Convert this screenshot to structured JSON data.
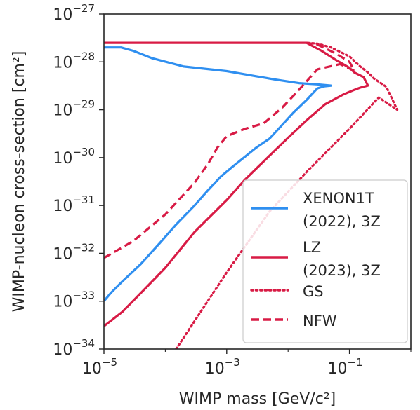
{
  "chart_data": {
    "type": "line",
    "xlabel": "WIMP mass [GeV/c²]",
    "ylabel": "WIMP-nucleon cross-section [cm²]",
    "xscale": "log",
    "yscale": "log",
    "xlim": [
      1e-05,
      1.0
    ],
    "ylim": [
      1e-34,
      1e-27
    ],
    "x_ticks": [
      {
        "value": 1e-05,
        "base": "10",
        "exp": "−5"
      },
      {
        "value": 0.001,
        "base": "10",
        "exp": "−3"
      },
      {
        "value": 0.1,
        "base": "10",
        "exp": "−1"
      }
    ],
    "y_ticks": [
      {
        "value": 1e-27,
        "base": "10",
        "exp": "−27"
      },
      {
        "value": 1e-28,
        "base": "10",
        "exp": "−28"
      },
      {
        "value": 1e-29,
        "base": "10",
        "exp": "−29"
      },
      {
        "value": 1e-30,
        "base": "10",
        "exp": "−30"
      },
      {
        "value": 1e-31,
        "base": "10",
        "exp": "−31"
      },
      {
        "value": 1e-32,
        "base": "10",
        "exp": "−32"
      },
      {
        "value": 1e-33,
        "base": "10",
        "exp": "−33"
      },
      {
        "value": 1e-34,
        "base": "10",
        "exp": "−34"
      }
    ],
    "grid": false,
    "legend_position": "bottom-right",
    "legend": [
      {
        "label_lines": [
          "XENON1T",
          "(2022), 3Z"
        ],
        "color": "#2f8ff0",
        "style": "solid"
      },
      {
        "label_lines": [
          "LZ",
          "(2023), 3Z"
        ],
        "color": "#d81b45",
        "style": "solid"
      },
      {
        "label_lines": [
          "GS"
        ],
        "color": "#d81b45",
        "style": "dotted"
      },
      {
        "label_lines": [
          "NFW"
        ],
        "color": "#d81b45",
        "style": "dashed"
      }
    ],
    "series": [
      {
        "name": "XENON1T (2022), 3Z",
        "color": "#2f8ff0",
        "style": "solid",
        "points": [
          [
            1e-05,
            1e-33
          ],
          [
            1.3e-05,
            1.5e-33
          ],
          [
            2e-05,
            2.6e-33
          ],
          [
            4e-05,
            6e-33
          ],
          [
            8e-05,
            1.6e-32
          ],
          [
            0.00015,
            4e-32
          ],
          [
            0.0003,
            1e-31
          ],
          [
            0.0005,
            2.1e-31
          ],
          [
            0.0008,
            4e-31
          ],
          [
            0.0012,
            6.2e-31
          ],
          [
            0.002,
            1.05e-30
          ],
          [
            0.003,
            1.6e-30
          ],
          [
            0.005,
            2.5e-30
          ],
          [
            0.008,
            4.8e-30
          ],
          [
            0.012,
            8.5e-30
          ],
          [
            0.02,
            1.6e-29
          ],
          [
            0.03,
            2.8e-29
          ],
          [
            0.04,
            3.1e-29
          ],
          [
            0.05,
            3.2e-29
          ],
          [
            0.03,
            3.4e-29
          ],
          [
            0.015,
            3.6e-29
          ],
          [
            0.006,
            4.3e-29
          ],
          [
            0.003,
            5e-29
          ],
          [
            0.001,
            6.4e-29
          ],
          [
            0.0002,
            8e-29
          ],
          [
            6e-05,
            1.2e-28
          ],
          [
            3e-05,
            1.7e-28
          ],
          [
            1.9e-05,
            2e-28
          ],
          [
            1e-05,
            2e-28
          ]
        ]
      },
      {
        "name": "LZ (2023), 3Z",
        "color": "#d81b45",
        "style": "solid",
        "points": [
          [
            1e-05,
            3e-34
          ],
          [
            2e-05,
            6e-34
          ],
          [
            5e-05,
            2e-33
          ],
          [
            0.0001,
            5e-33
          ],
          [
            0.0003,
            2.8e-32
          ],
          [
            0.001,
            1.3e-31
          ],
          [
            0.002,
            3.5e-31
          ],
          [
            0.005,
            1.1e-30
          ],
          [
            0.01,
            2.6e-30
          ],
          [
            0.02,
            6e-30
          ],
          [
            0.04,
            1.3e-29
          ],
          [
            0.08,
            2.1e-29
          ],
          [
            0.12,
            2.6e-29
          ],
          [
            0.15,
            2.9e-29
          ],
          [
            0.2,
            3.2e-29
          ],
          [
            0.17,
            4.8e-29
          ],
          [
            0.12,
            6e-29
          ],
          [
            0.1,
            7.5e-29
          ],
          [
            0.06,
            1.1e-28
          ],
          [
            0.035,
            1.7e-28
          ],
          [
            0.02,
            2.5e-28
          ],
          [
            0.01,
            2.5e-28
          ],
          [
            1e-05,
            2.5e-28
          ]
        ]
      },
      {
        "name": "GS",
        "color": "#d81b45",
        "style": "dotted",
        "points": [
          [
            0.00015,
            1e-34
          ],
          [
            0.001,
            4e-33
          ],
          [
            0.005,
            7.5e-32
          ],
          [
            0.02,
            5e-31
          ],
          [
            0.1,
            4e-30
          ],
          [
            0.3,
            1.8e-29
          ],
          [
            0.6,
            1e-29
          ],
          [
            0.4,
            3e-29
          ],
          [
            0.25,
            4.5e-29
          ],
          [
            0.2,
            6e-29
          ],
          [
            0.15,
            8e-29
          ],
          [
            0.1,
            1.3e-28
          ],
          [
            0.05,
            2e-28
          ],
          [
            0.03,
            2.4e-28
          ],
          [
            0.02,
            2.5e-28
          ]
        ]
      },
      {
        "name": "NFW",
        "color": "#d81b45",
        "style": "dashed",
        "points": [
          [
            1e-05,
            8e-33
          ],
          [
            3e-05,
            1.8e-32
          ],
          [
            0.0001,
            6.5e-32
          ],
          [
            0.0003,
            3e-31
          ],
          [
            0.0005,
            7.5e-31
          ],
          [
            0.0007,
            1.6e-30
          ],
          [
            0.001,
            2.8e-30
          ],
          [
            0.002,
            4e-30
          ],
          [
            0.004,
            5.2e-30
          ],
          [
            0.008,
            1.1e-29
          ],
          [
            0.015,
            2.6e-29
          ],
          [
            0.03,
            7e-29
          ],
          [
            0.07,
            9e-29
          ],
          [
            0.12,
            6.5e-29
          ],
          [
            0.1,
            1e-28
          ],
          [
            0.06,
            1.5e-28
          ],
          [
            0.03,
            2.3e-28
          ],
          [
            0.02,
            2.5e-28
          ]
        ]
      }
    ]
  }
}
